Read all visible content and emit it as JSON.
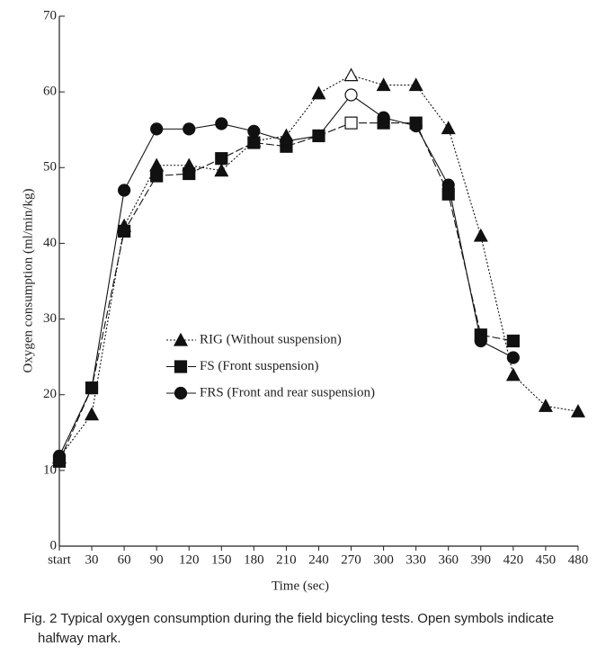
{
  "chart_data": {
    "type": "line",
    "xlabel": "Time (sec)",
    "ylabel": "Oxygen consumption (ml/min/kg)",
    "caption": "Fig. 2   Typical oxygen consumption during the field bicycling tests. Open symbols indicate halfway mark.",
    "categories": [
      "start",
      "30",
      "60",
      "90",
      "120",
      "150",
      "180",
      "210",
      "240",
      "270",
      "300",
      "330",
      "360",
      "390",
      "420",
      "450",
      "480"
    ],
    "ylim": [
      0,
      70
    ],
    "yticks": [
      0,
      10,
      20,
      30,
      40,
      50,
      60,
      70
    ],
    "series": [
      {
        "name": "RIG (Without suspension)",
        "color": "#111",
        "marker": "triangle",
        "dash": "2,2",
        "open_index": 9,
        "values": [
          11.7,
          17.4,
          42.3,
          50.3,
          50.3,
          49.6,
          53.5,
          54.2,
          59.8,
          62.2,
          60.9,
          60.9,
          55.2,
          41,
          22.6,
          18.5,
          17.8
        ]
      },
      {
        "name": "FS (Front suspension)",
        "color": "#111",
        "marker": "square",
        "dash": "9,3",
        "open_index": 9,
        "values": [
          11.2,
          20.9,
          41.6,
          48.9,
          49.2,
          51.2,
          53.3,
          52.8,
          54.2,
          55.9,
          55.9,
          55.9,
          46.5,
          27.9,
          27.1,
          null,
          null
        ]
      },
      {
        "name": "FRS (Front and rear suspension)",
        "color": "#111",
        "marker": "circle",
        "dash": "none",
        "open_index": 9,
        "values": [
          11.9,
          20.9,
          47,
          55.1,
          55.1,
          55.8,
          54.8,
          53.5,
          54.2,
          59.6,
          56.6,
          55.5,
          47.7,
          27.1,
          24.9,
          null,
          null
        ]
      }
    ]
  }
}
